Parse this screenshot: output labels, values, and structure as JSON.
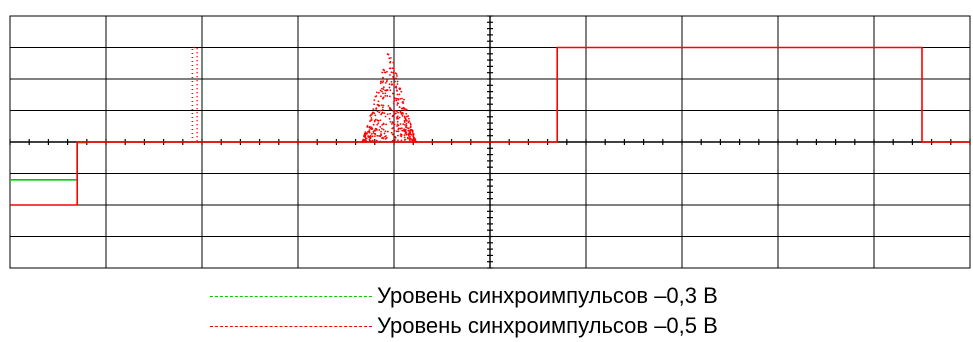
{
  "chart_data": {
    "type": "line",
    "title": "",
    "xlabel": "",
    "ylabel": "",
    "grid": true,
    "grid_divisions": {
      "x": 10,
      "y": 8
    },
    "xlim": [
      0,
      10
    ],
    "ylim": [
      -4,
      4
    ],
    "colors": {
      "grid": "#000000",
      "background": "#ffffff"
    },
    "legend_position": "bottom",
    "legend": [
      {
        "label": "Уровень синхроимпульсов –0,3 В",
        "color": "#00cc00"
      },
      {
        "label": "Уровень синхроимпульсов –0,5 В",
        "color": "#ff0000"
      }
    ],
    "series": [
      {
        "color": "#00cc00",
        "style": "solid",
        "points": [
          [
            0,
            -1.2
          ],
          [
            0.7,
            -1.2
          ],
          [
            0.7,
            -0.02
          ],
          [
            0.8,
            -0.02
          ]
        ]
      },
      {
        "color": "#ff0000",
        "style": "solid",
        "points": [
          [
            0,
            -2
          ],
          [
            0.7,
            -2
          ],
          [
            0.7,
            0
          ],
          [
            1.85,
            0
          ],
          [
            3.7,
            0
          ],
          [
            4.25,
            0
          ],
          [
            5.7,
            0
          ],
          [
            5.7,
            3
          ],
          [
            9.5,
            3
          ],
          [
            9.5,
            0
          ],
          [
            10,
            0
          ]
        ]
      },
      {
        "color": "#ff0000",
        "style": "dotted",
        "points": [
          [
            1.9,
            0
          ],
          [
            1.9,
            3
          ],
          [
            1.95,
            3
          ],
          [
            1.95,
            0
          ]
        ]
      },
      {
        "color": "#ff0000",
        "style": "burst",
        "burst_center": 3.95,
        "burst_halfwidth": 0.28,
        "burst_peak": 3.0
      }
    ]
  }
}
